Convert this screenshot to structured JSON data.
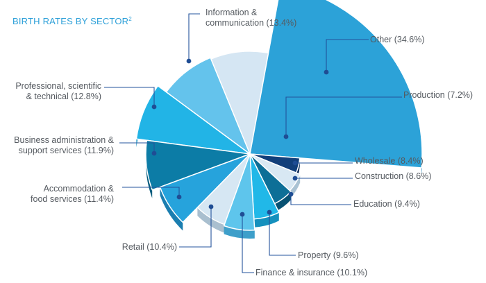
{
  "chart_data": {
    "type": "pie",
    "title": "BIRTH RATES BY SECTOR",
    "title_superscript": "2",
    "unit": "%",
    "slices": [
      {
        "name": "Other",
        "value": 34.6,
        "label_text": "Other (34.6%)",
        "color": "#2ca2d8",
        "side": "#1b7fb2"
      },
      {
        "name": "Production",
        "value": 7.2,
        "label_text": "Production (7.2%)",
        "color": "#123f7a",
        "side": "#0c2c58"
      },
      {
        "name": "Wholesale",
        "value": 8.4,
        "label_text": "Wholesale (8.4%)",
        "color": "#d8e8f3",
        "side": "#a9c2d3"
      },
      {
        "name": "Construction",
        "value": 8.6,
        "label_text": "Construction (8.6%)",
        "color": "#0d6f97",
        "side": "#085273"
      },
      {
        "name": "Education",
        "value": 9.4,
        "label_text": "Education (9.4%)",
        "color": "#21b8e8",
        "side": "#1590bd"
      },
      {
        "name": "Property",
        "value": 9.6,
        "label_text": "Property (9.6%)",
        "color": "#5ec5ec",
        "side": "#3e9fca"
      },
      {
        "name": "Finance & insurance",
        "value": 10.1,
        "label_text": "Finance & insurance (10.1%)",
        "color": "#d6e7f3",
        "side": "#a9bfcf"
      },
      {
        "name": "Retail",
        "value": 10.4,
        "label_text": "Retail (10.4%)",
        "color": "#26a3dc",
        "side": "#1b7eb0"
      },
      {
        "name": "Accommodation & food services",
        "value": 11.4,
        "label_lines": [
          "Accommodation &",
          "food services (11.4%)"
        ],
        "color": "#0c7ca6",
        "side": "#075c7e"
      },
      {
        "name": "Business administration & support services",
        "value": 11.9,
        "label_lines": [
          "Business administration &",
          "support services (11.9%)"
        ],
        "color": "#22b4e6",
        "side": "#1690c0"
      },
      {
        "name": "Professional, scientific & technical",
        "value": 12.8,
        "label_lines": [
          "Professional, scientific",
          "& technical (12.8%)"
        ],
        "color": "#64c3ec",
        "side": "#449fc8"
      },
      {
        "name": "Information & communication",
        "value": 13.4,
        "label_lines": [
          "Information &",
          "communication (13.4%)"
        ],
        "color": "#d5e6f3",
        "side": "#a7bccd"
      }
    ]
  }
}
